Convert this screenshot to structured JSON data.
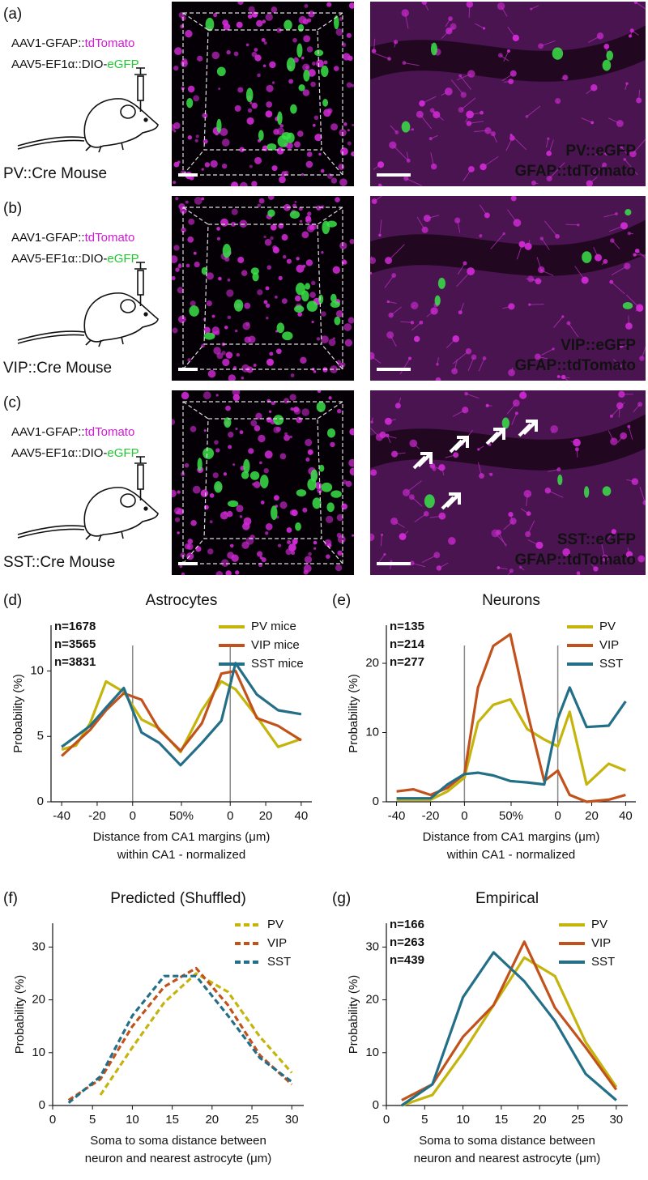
{
  "panels": [
    {
      "label": "(a)",
      "vector1": {
        "prefix": "AAV1-GFAP::",
        "highlight": "tdTomato"
      },
      "vector2": {
        "prefix": "AAV5-EF1α::DIO-",
        "highlight": "eGFP"
      },
      "mouse": "PV::Cre Mouse",
      "image_labels": [
        "PV::eGFP",
        "GFAP::tdTomato"
      ]
    },
    {
      "label": "(b)",
      "vector1": {
        "prefix": "AAV1-GFAP::",
        "highlight": "tdTomato"
      },
      "vector2": {
        "prefix": "AAV5-EF1α::DIO-",
        "highlight": "eGFP"
      },
      "mouse": "VIP::Cre Mouse",
      "image_labels": [
        "VIP::eGFP",
        "GFAP::tdTomato"
      ]
    },
    {
      "label": "(c)",
      "vector1": {
        "prefix": "AAV1-GFAP::",
        "highlight": "tdTomato"
      },
      "vector2": {
        "prefix": "AAV5-EF1α::DIO-",
        "highlight": "eGFP"
      },
      "mouse": "SST::Cre Mouse",
      "image_labels": [
        "SST::eGFP",
        "GFAP::tdTomato"
      ]
    }
  ],
  "chart_data": [
    {
      "type": "line",
      "label": "(d)",
      "title": "Astrocytes",
      "xlabel": [
        "Distance from CA1 margins (μm)",
        "within CA1 - normalized"
      ],
      "ylabel": "Probability (%)",
      "annotations": [
        {
          "text": "n=1678",
          "color": "#c4b40c"
        },
        {
          "text": "n=3565",
          "color": "#c2521c"
        },
        {
          "text": "n=3831",
          "color": "#236f88"
        }
      ],
      "x": [
        -40,
        -32,
        -24,
        -15,
        -5,
        5,
        15,
        27,
        39,
        50,
        58,
        70,
        82,
        95
      ],
      "series": [
        {
          "name": "PV mice",
          "color": "#c4b40c",
          "values": [
            4.0,
            4.3,
            6.0,
            9.2,
            8.4,
            6.3,
            5.6,
            3.8,
            7.0,
            9.2,
            8.6,
            6.5,
            4.2,
            4.8
          ]
        },
        {
          "name": "VIP mice",
          "color": "#c2521c",
          "values": [
            3.5,
            4.5,
            5.5,
            7.0,
            8.3,
            7.8,
            5.5,
            3.9,
            6.0,
            9.8,
            10.0,
            6.4,
            5.8,
            4.7
          ]
        },
        {
          "name": "SST mice",
          "color": "#236f88",
          "values": [
            4.2,
            5.0,
            5.8,
            7.2,
            8.7,
            5.3,
            4.5,
            2.8,
            4.5,
            6.2,
            10.6,
            8.2,
            7.0,
            6.7
          ]
        }
      ],
      "xlim": [
        -46,
        101
      ],
      "xticks": [
        -40,
        -20,
        0,
        {
          "value": 27.5,
          "label": "50%"
        },
        {
          "value": 55,
          "label": "0"
        },
        {
          "value": 75,
          "label": "20"
        },
        {
          "value": 95,
          "label": "40"
        }
      ],
      "ylim": [
        0,
        13.5
      ],
      "yticks": [
        0,
        5,
        10
      ],
      "vlines": [
        0,
        55
      ],
      "legend": "upper right",
      "dashed": false
    },
    {
      "type": "line",
      "label": "(e)",
      "title": "Neurons",
      "xlabel": [
        "Distance from CA1 margins (μm)",
        "within CA1 - normalized"
      ],
      "ylabel": "Probability (%)",
      "annotations": [
        {
          "text": "n=135",
          "color": "#c4b40c"
        },
        {
          "text": "n=214",
          "color": "#c2521c"
        },
        {
          "text": "n=277",
          "color": "#236f88"
        }
      ],
      "x": [
        -40,
        -30,
        -20,
        -10,
        0,
        8,
        17,
        27,
        37,
        47,
        55,
        62,
        72,
        85,
        95
      ],
      "series": [
        {
          "name": "PV",
          "color": "#c4b40c",
          "values": [
            0.3,
            0.3,
            0.3,
            1.5,
            3.5,
            11.5,
            14.0,
            14.8,
            10.5,
            9.0,
            8.0,
            13.0,
            2.5,
            5.5,
            4.5
          ]
        },
        {
          "name": "VIP",
          "color": "#c2521c",
          "values": [
            1.5,
            1.8,
            1.0,
            2.0,
            4.0,
            16.5,
            22.5,
            24.2,
            13.0,
            3.0,
            4.5,
            1.0,
            0.0,
            0.3,
            1.0
          ]
        },
        {
          "name": "SST",
          "color": "#236f88",
          "values": [
            0.5,
            0.5,
            0.5,
            2.5,
            4.0,
            4.2,
            3.8,
            3.0,
            2.8,
            2.5,
            12.0,
            16.5,
            10.8,
            11.0,
            14.5
          ]
        }
      ],
      "xlim": [
        -46,
        101
      ],
      "xticks": [
        -40,
        -20,
        0,
        {
          "value": 27.5,
          "label": "50%"
        },
        {
          "value": 55,
          "label": "0"
        },
        {
          "value": 75,
          "label": "20"
        },
        {
          "value": 95,
          "label": "40"
        }
      ],
      "ylim": [
        0,
        25.5
      ],
      "yticks": [
        0,
        10,
        20
      ],
      "vlines": [
        0,
        55
      ],
      "legend": "upper right",
      "dashed": false
    },
    {
      "type": "line",
      "label": "(f)",
      "title": "Predicted (Shuffled)",
      "xlabel": [
        "Soma to soma distance between",
        "neuron and nearest astrocyte (μm)"
      ],
      "ylabel": "Probability (%)",
      "x": [
        2,
        6,
        10,
        14,
        18,
        22,
        26,
        30
      ],
      "series": [
        {
          "name": "PV",
          "color": "#c4b40c",
          "values": [
            null,
            2,
            11,
            19.5,
            25,
            21.5,
            13,
            6.2
          ]
        },
        {
          "name": "VIP",
          "color": "#c2521c",
          "values": [
            1,
            5,
            15,
            22.5,
            26,
            19,
            9.5,
            4
          ]
        },
        {
          "name": "SST",
          "color": "#236f88",
          "values": [
            0.5,
            5.5,
            17,
            24.5,
            24.5,
            17,
            9,
            4.5
          ]
        }
      ],
      "xlim": [
        0,
        31.5
      ],
      "xticks": [
        0,
        5,
        10,
        15,
        20,
        25,
        30
      ],
      "ylim": [
        0,
        34.5
      ],
      "yticks": [
        0,
        10,
        20,
        30
      ],
      "legend": "upper right",
      "dashed": true
    },
    {
      "type": "line",
      "label": "(g)",
      "title": "Empirical",
      "xlabel": [
        "Soma to soma distance between",
        "neuron and nearest astrocyte (μm)"
      ],
      "ylabel": "Probability (%)",
      "annotations": [
        {
          "text": "n=166",
          "color": "#c4b40c"
        },
        {
          "text": "n=263",
          "color": "#c2521c"
        },
        {
          "text": "n=439",
          "color": "#236f88"
        }
      ],
      "x": [
        2,
        6,
        10,
        14,
        18,
        22,
        26,
        30
      ],
      "series": [
        {
          "name": "PV",
          "color": "#c4b40c",
          "values": [
            0,
            2,
            10,
            19,
            28,
            24.5,
            12,
            3.5
          ]
        },
        {
          "name": "VIP",
          "color": "#c2521c",
          "values": [
            1,
            4,
            13,
            19,
            31,
            18.5,
            11,
            3
          ]
        },
        {
          "name": "SST",
          "color": "#236f88",
          "values": [
            0,
            4,
            20.5,
            29,
            23.5,
            16,
            6,
            1
          ]
        }
      ],
      "xlim": [
        0,
        31.5
      ],
      "xticks": [
        0,
        5,
        10,
        15,
        20,
        25,
        30
      ],
      "ylim": [
        0,
        34.5
      ],
      "yticks": [
        0,
        10,
        20,
        30
      ],
      "legend": "upper right",
      "dashed": false
    }
  ]
}
